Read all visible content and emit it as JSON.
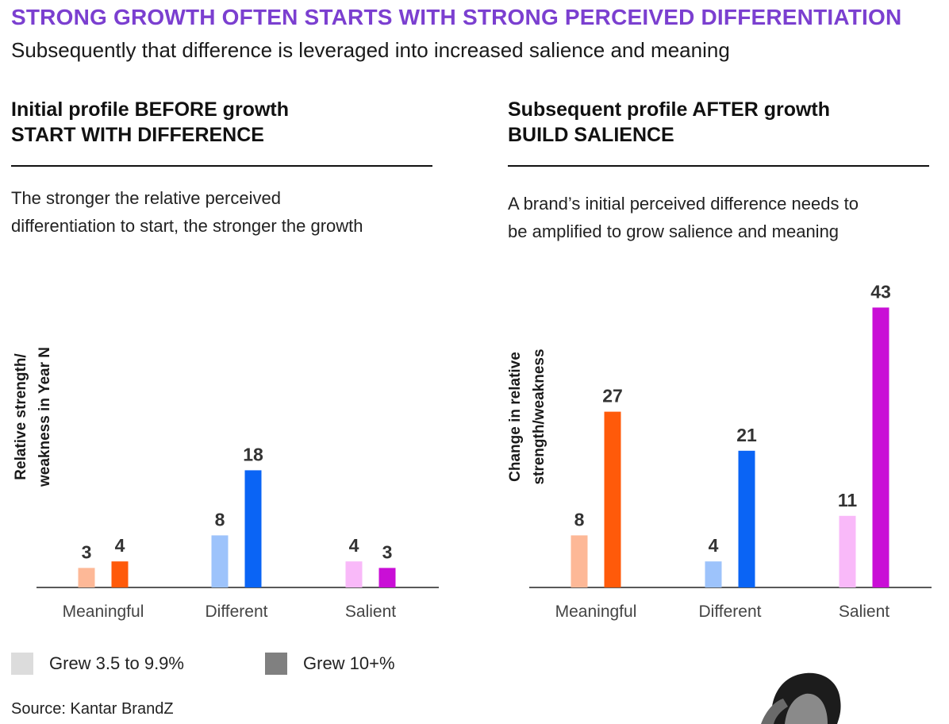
{
  "header": {
    "title": "STRONG GROWTH OFTEN STARTS WITH STRONG PERCEIVED DIFFERENTIATION",
    "subtitle": "Subsequently that difference is leveraged into increased salience and meaning"
  },
  "left_panel": {
    "heading_line1": "Initial profile BEFORE growth",
    "heading_line2": "START WITH DIFFERENCE",
    "desc_line1": "The stronger the relative perceived",
    "desc_line2": "differentiation to start, the stronger the growth"
  },
  "right_panel": {
    "heading_line1": "Subsequent profile AFTER growth",
    "heading_line2": "BUILD SALIENCE",
    "desc_line1": "A brand’s initial perceived difference needs to",
    "desc_line2": "be amplified to grow salience and meaning"
  },
  "legend": {
    "item1": "Grew 3.5 to 9.9%",
    "item2": "Grew 10+%",
    "item1_color": "#dcdcdc",
    "item2_color": "#808080"
  },
  "source": "Source: Kantar BrandZ",
  "colors": {
    "title": "#7b3fd0",
    "meaningful_light": "#fdb897",
    "meaningful_dark": "#ff5a0a",
    "different_light": "#9dc3fb",
    "different_dark": "#0a64f5",
    "salient_light": "#f9b9f9",
    "salient_dark": "#c90fd6"
  },
  "chart_data": [
    {
      "type": "bar",
      "title": "Initial profile BEFORE growth",
      "ylabel_line1": "Relative strength/",
      "ylabel_line2": "weakness in Year N",
      "xlabel": "",
      "categories": [
        "Meaningful",
        "Different",
        "Salient"
      ],
      "series": [
        {
          "name": "Grew 3.5 to 9.9%",
          "values": [
            3,
            8,
            4
          ]
        },
        {
          "name": "Grew 10+%",
          "values": [
            4,
            18,
            3
          ]
        }
      ],
      "ylim": [
        0,
        43
      ]
    },
    {
      "type": "bar",
      "title": "Subsequent profile AFTER growth",
      "ylabel_line1": "Change in relative",
      "ylabel_line2": "strength/weakness",
      "xlabel": "",
      "categories": [
        "Meaningful",
        "Different",
        "Salient"
      ],
      "series": [
        {
          "name": "Grew 3.5 to 9.9%",
          "values": [
            8,
            4,
            11
          ]
        },
        {
          "name": "Grew 10+%",
          "values": [
            27,
            21,
            43
          ]
        }
      ],
      "ylim": [
        0,
        43
      ]
    }
  ]
}
